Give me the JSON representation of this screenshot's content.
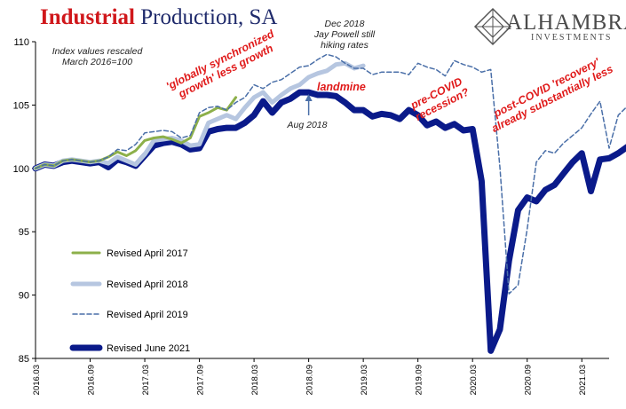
{
  "header": {
    "title_part1": "Industrial",
    "title_part2": " Production, SA",
    "logo_name": "ALHAMBRA",
    "logo_sub": "INVESTMENTS",
    "logo_icon": "alhambra-diamond-icon"
  },
  "annotations": {
    "rescale_line1": "Index values rescaled",
    "rescale_line2": "March 2016=100",
    "dec2018_line1": "Dec 2018",
    "dec2018_line2": "Jay Powell still",
    "dec2018_line3": "hiking rates",
    "aug2018": "Aug 2018",
    "globally_line1": "'globally synchronized",
    "globally_line2": "growth' less growth",
    "landmine": "landmine",
    "precovid_line1": "pre-COVID",
    "precovid_line2": "recession?",
    "postcovid_line1": "post-COVID 'recovery'",
    "postcovid_line2": "already substantially less"
  },
  "colors": {
    "title_red": "#d0171b",
    "title_navy": "#1f2a6b",
    "annotation_red": "#e01a1a",
    "rev2017": "#8db04a",
    "rev2018": "#b6c6e0",
    "rev2019": "#4a6fa8",
    "rev2021": "#0a1a8a"
  },
  "chart_data": {
    "type": "line",
    "ylim": [
      85,
      110
    ],
    "yticks": [
      85,
      90,
      95,
      100,
      105,
      110
    ],
    "x_range": [
      "2016.03",
      "2021.06"
    ],
    "xtick_labels": [
      "2016.03",
      "2016.09",
      "2017.03",
      "2017.09",
      "2018.03",
      "2018.09",
      "2019.03",
      "2019.09",
      "2020.03",
      "2020.09",
      "2021.03"
    ],
    "grid": false,
    "legend_position": "bottom-left",
    "series": [
      {
        "name": "Revised April 2017",
        "start": "2016.03",
        "values": [
          100.0,
          100.3,
          100.2,
          100.6,
          100.7,
          100.6,
          100.5,
          100.6,
          100.9,
          101.3,
          101.0,
          101.4,
          102.2,
          102.4,
          102.5,
          102.3,
          102.0,
          102.4,
          104.1,
          104.4,
          104.8,
          104.6,
          105.6
        ]
      },
      {
        "name": "Revised April 2018",
        "start": "2016.03",
        "values": [
          100.0,
          100.3,
          100.2,
          100.6,
          100.7,
          100.6,
          100.5,
          100.6,
          100.4,
          100.9,
          100.6,
          100.3,
          101.1,
          102.2,
          102.3,
          102.4,
          102.2,
          101.8,
          101.9,
          103.6,
          103.9,
          104.2,
          103.9,
          104.8,
          105.6,
          106.0,
          105.2,
          105.8,
          106.3,
          106.6,
          107.2,
          107.5,
          107.7,
          108.2,
          108.3,
          107.9,
          108.1
        ]
      },
      {
        "name": "Revised April 2019",
        "start": "2016.03",
        "values": [
          100.0,
          100.3,
          100.2,
          100.6,
          100.7,
          100.6,
          100.5,
          100.6,
          100.9,
          101.5,
          101.4,
          101.9,
          102.8,
          102.9,
          103.0,
          102.9,
          102.4,
          102.6,
          104.4,
          104.8,
          104.9,
          104.6,
          105.2,
          105.6,
          106.6,
          106.3,
          106.8,
          107.0,
          107.5,
          108.0,
          108.1,
          108.6,
          109.0,
          108.8,
          108.3,
          107.9,
          107.9,
          107.4,
          107.6,
          107.6,
          107.6,
          107.4,
          108.3,
          108.0,
          107.8,
          107.3,
          108.5,
          108.2,
          108.0,
          107.6,
          107.8,
          100.1,
          90.1,
          90.8,
          95.2,
          100.5,
          101.4,
          101.2,
          102.0,
          102.6,
          103.2,
          104.3,
          105.3,
          101.6,
          104.2,
          104.9
        ]
      },
      {
        "name": "Revised June 2021",
        "start": "2016.03",
        "values": [
          100.0,
          100.3,
          100.2,
          100.5,
          100.6,
          100.5,
          100.4,
          100.5,
          100.1,
          100.7,
          100.5,
          100.2,
          101.0,
          101.8,
          102.0,
          102.1,
          101.9,
          101.5,
          101.6,
          102.9,
          103.1,
          103.2,
          103.2,
          103.6,
          104.2,
          105.3,
          104.4,
          105.2,
          105.5,
          106.0,
          106.0,
          105.8,
          105.8,
          105.7,
          105.2,
          104.6,
          104.6,
          104.1,
          104.3,
          104.2,
          103.9,
          104.6,
          104.2,
          103.4,
          103.7,
          103.2,
          103.5,
          103.0,
          103.1,
          99.0,
          85.6,
          87.3,
          92.7,
          96.7,
          97.7,
          97.4,
          98.3,
          98.7,
          99.6,
          100.5,
          101.2,
          98.2,
          100.7,
          100.8,
          101.2,
          101.7
        ]
      }
    ]
  }
}
